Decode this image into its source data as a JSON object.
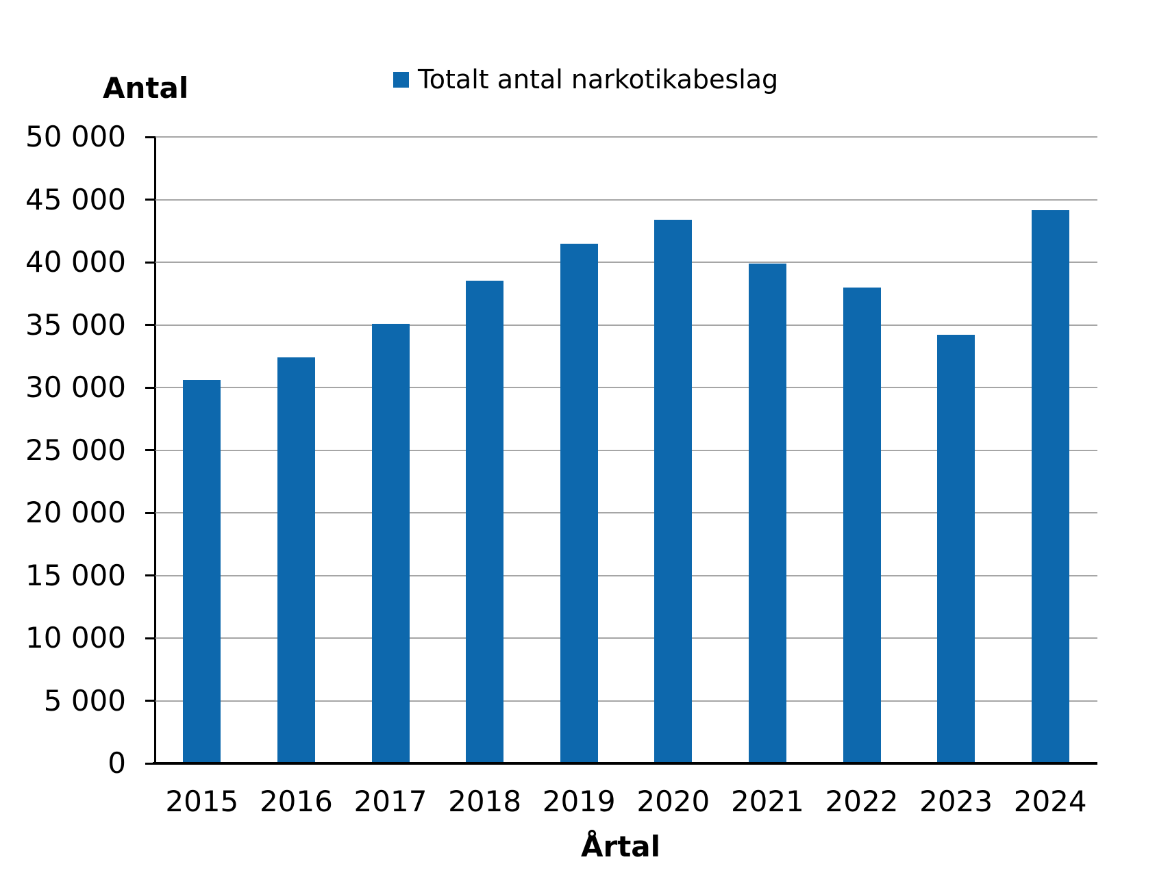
{
  "chart_data": {
    "type": "bar",
    "categories": [
      "2015",
      "2016",
      "2017",
      "2018",
      "2019",
      "2020",
      "2021",
      "2022",
      "2023",
      "2024"
    ],
    "values": [
      30600,
      32400,
      35100,
      38500,
      41500,
      43400,
      39900,
      38000,
      34200,
      44150
    ],
    "series": [
      {
        "name": "Totalt antal narkotikabeslag",
        "values": [
          30600,
          32400,
          35100,
          38500,
          41500,
          43400,
          39900,
          38000,
          34200,
          44150
        ]
      }
    ],
    "title": "",
    "xlabel": "Årtal",
    "ylabel": "Antal",
    "ylim": [
      0,
      50000
    ],
    "ytick_step": 5000,
    "ytick_labels": [
      "0",
      "5 000",
      "10 000",
      "15 000",
      "20 000",
      "25 000",
      "30 000",
      "35 000",
      "40 000",
      "45 000",
      "50 000"
    ],
    "grid": true,
    "legend_position": "top-center"
  },
  "legend": {
    "label": "Totalt antal narkotikabeslag"
  },
  "axes": {
    "y_title": "Antal",
    "x_title": "Årtal"
  },
  "colors": {
    "bar": "#0d68ad",
    "gridline": "#a6a6a6",
    "axis": "#000000",
    "text": "#000000",
    "background": "#ffffff"
  }
}
